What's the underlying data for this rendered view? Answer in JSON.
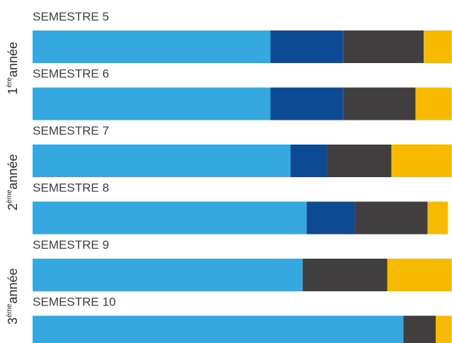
{
  "chart_data": {
    "type": "bar",
    "stacked": true,
    "orientation": "horizontal",
    "colors": [
      "#35a8e0",
      "#0d4a93",
      "#403e3f",
      "#f6bb00"
    ],
    "groups": [
      {
        "year_number": "1",
        "year_sup": "ère",
        "year_word": "année",
        "semesters": [
          {
            "label": "SEMESTRE 5",
            "values": [
              59,
              18,
              20,
              7
            ]
          },
          {
            "label": "SEMESTRE 6",
            "values": [
              59,
              18,
              18,
              9
            ]
          }
        ]
      },
      {
        "year_number": "2",
        "year_sup": "ème",
        "year_word": "année",
        "semesters": [
          {
            "label": "SEMESTRE 7",
            "values": [
              64,
              9,
              16,
              15
            ]
          },
          {
            "label": "SEMESTRE 8",
            "values": [
              68,
              12,
              18,
              5
            ]
          }
        ]
      },
      {
        "year_number": "3",
        "year_sup": "ème",
        "year_word": "année",
        "semesters": [
          {
            "label": "SEMESTRE 9",
            "values": [
              67,
              0,
              21,
              16
            ]
          },
          {
            "label": "SEMESTRE 10",
            "values": [
              92,
              0,
              8,
              4
            ]
          }
        ]
      }
    ]
  }
}
